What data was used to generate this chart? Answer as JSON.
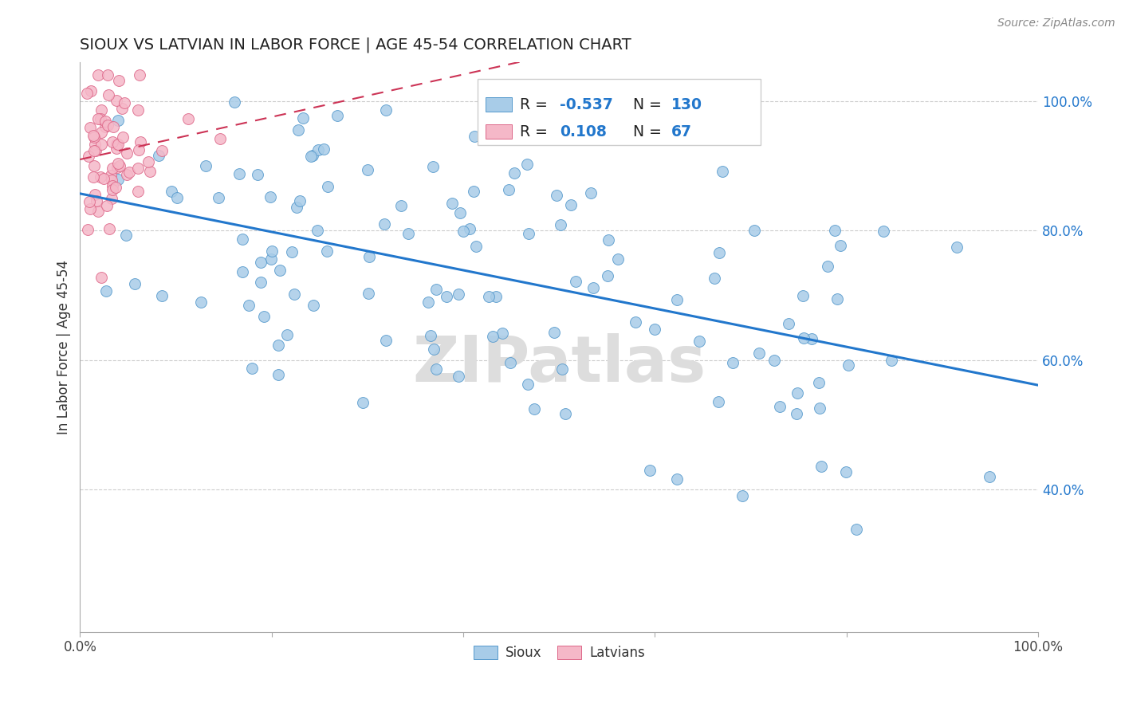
{
  "title": "SIOUX VS LATVIAN IN LABOR FORCE | AGE 45-54 CORRELATION CHART",
  "source_text": "Source: ZipAtlas.com",
  "ylabel": "In Labor Force | Age 45-54",
  "xlim": [
    0.0,
    1.0
  ],
  "ylim": [
    0.18,
    1.06
  ],
  "xtick_positions": [
    0.0,
    0.2,
    0.4,
    0.6,
    0.8,
    1.0
  ],
  "xtick_labels": [
    "0.0%",
    "",
    "",
    "",
    "",
    "100.0%"
  ],
  "ytick_values": [
    0.4,
    0.6,
    0.8,
    1.0
  ],
  "ytick_labels": [
    "40.0%",
    "60.0%",
    "80.0%",
    "100.0%"
  ],
  "sioux_color": "#a8cce8",
  "sioux_edge": "#5599cc",
  "latvian_color": "#f5b8c8",
  "latvian_edge": "#dd6688",
  "sioux_line_color": "#2277cc",
  "latvian_line_color": "#cc3355",
  "legend_R_color": "#2277cc",
  "legend_N_color": "#2277cc",
  "sioux_R": "-0.537",
  "sioux_N": "130",
  "latvian_R": "0.108",
  "latvian_N": "67",
  "watermark": "ZIPatlas",
  "background": "#ffffff",
  "grid_color": "#cccccc",
  "marker_size": 100
}
